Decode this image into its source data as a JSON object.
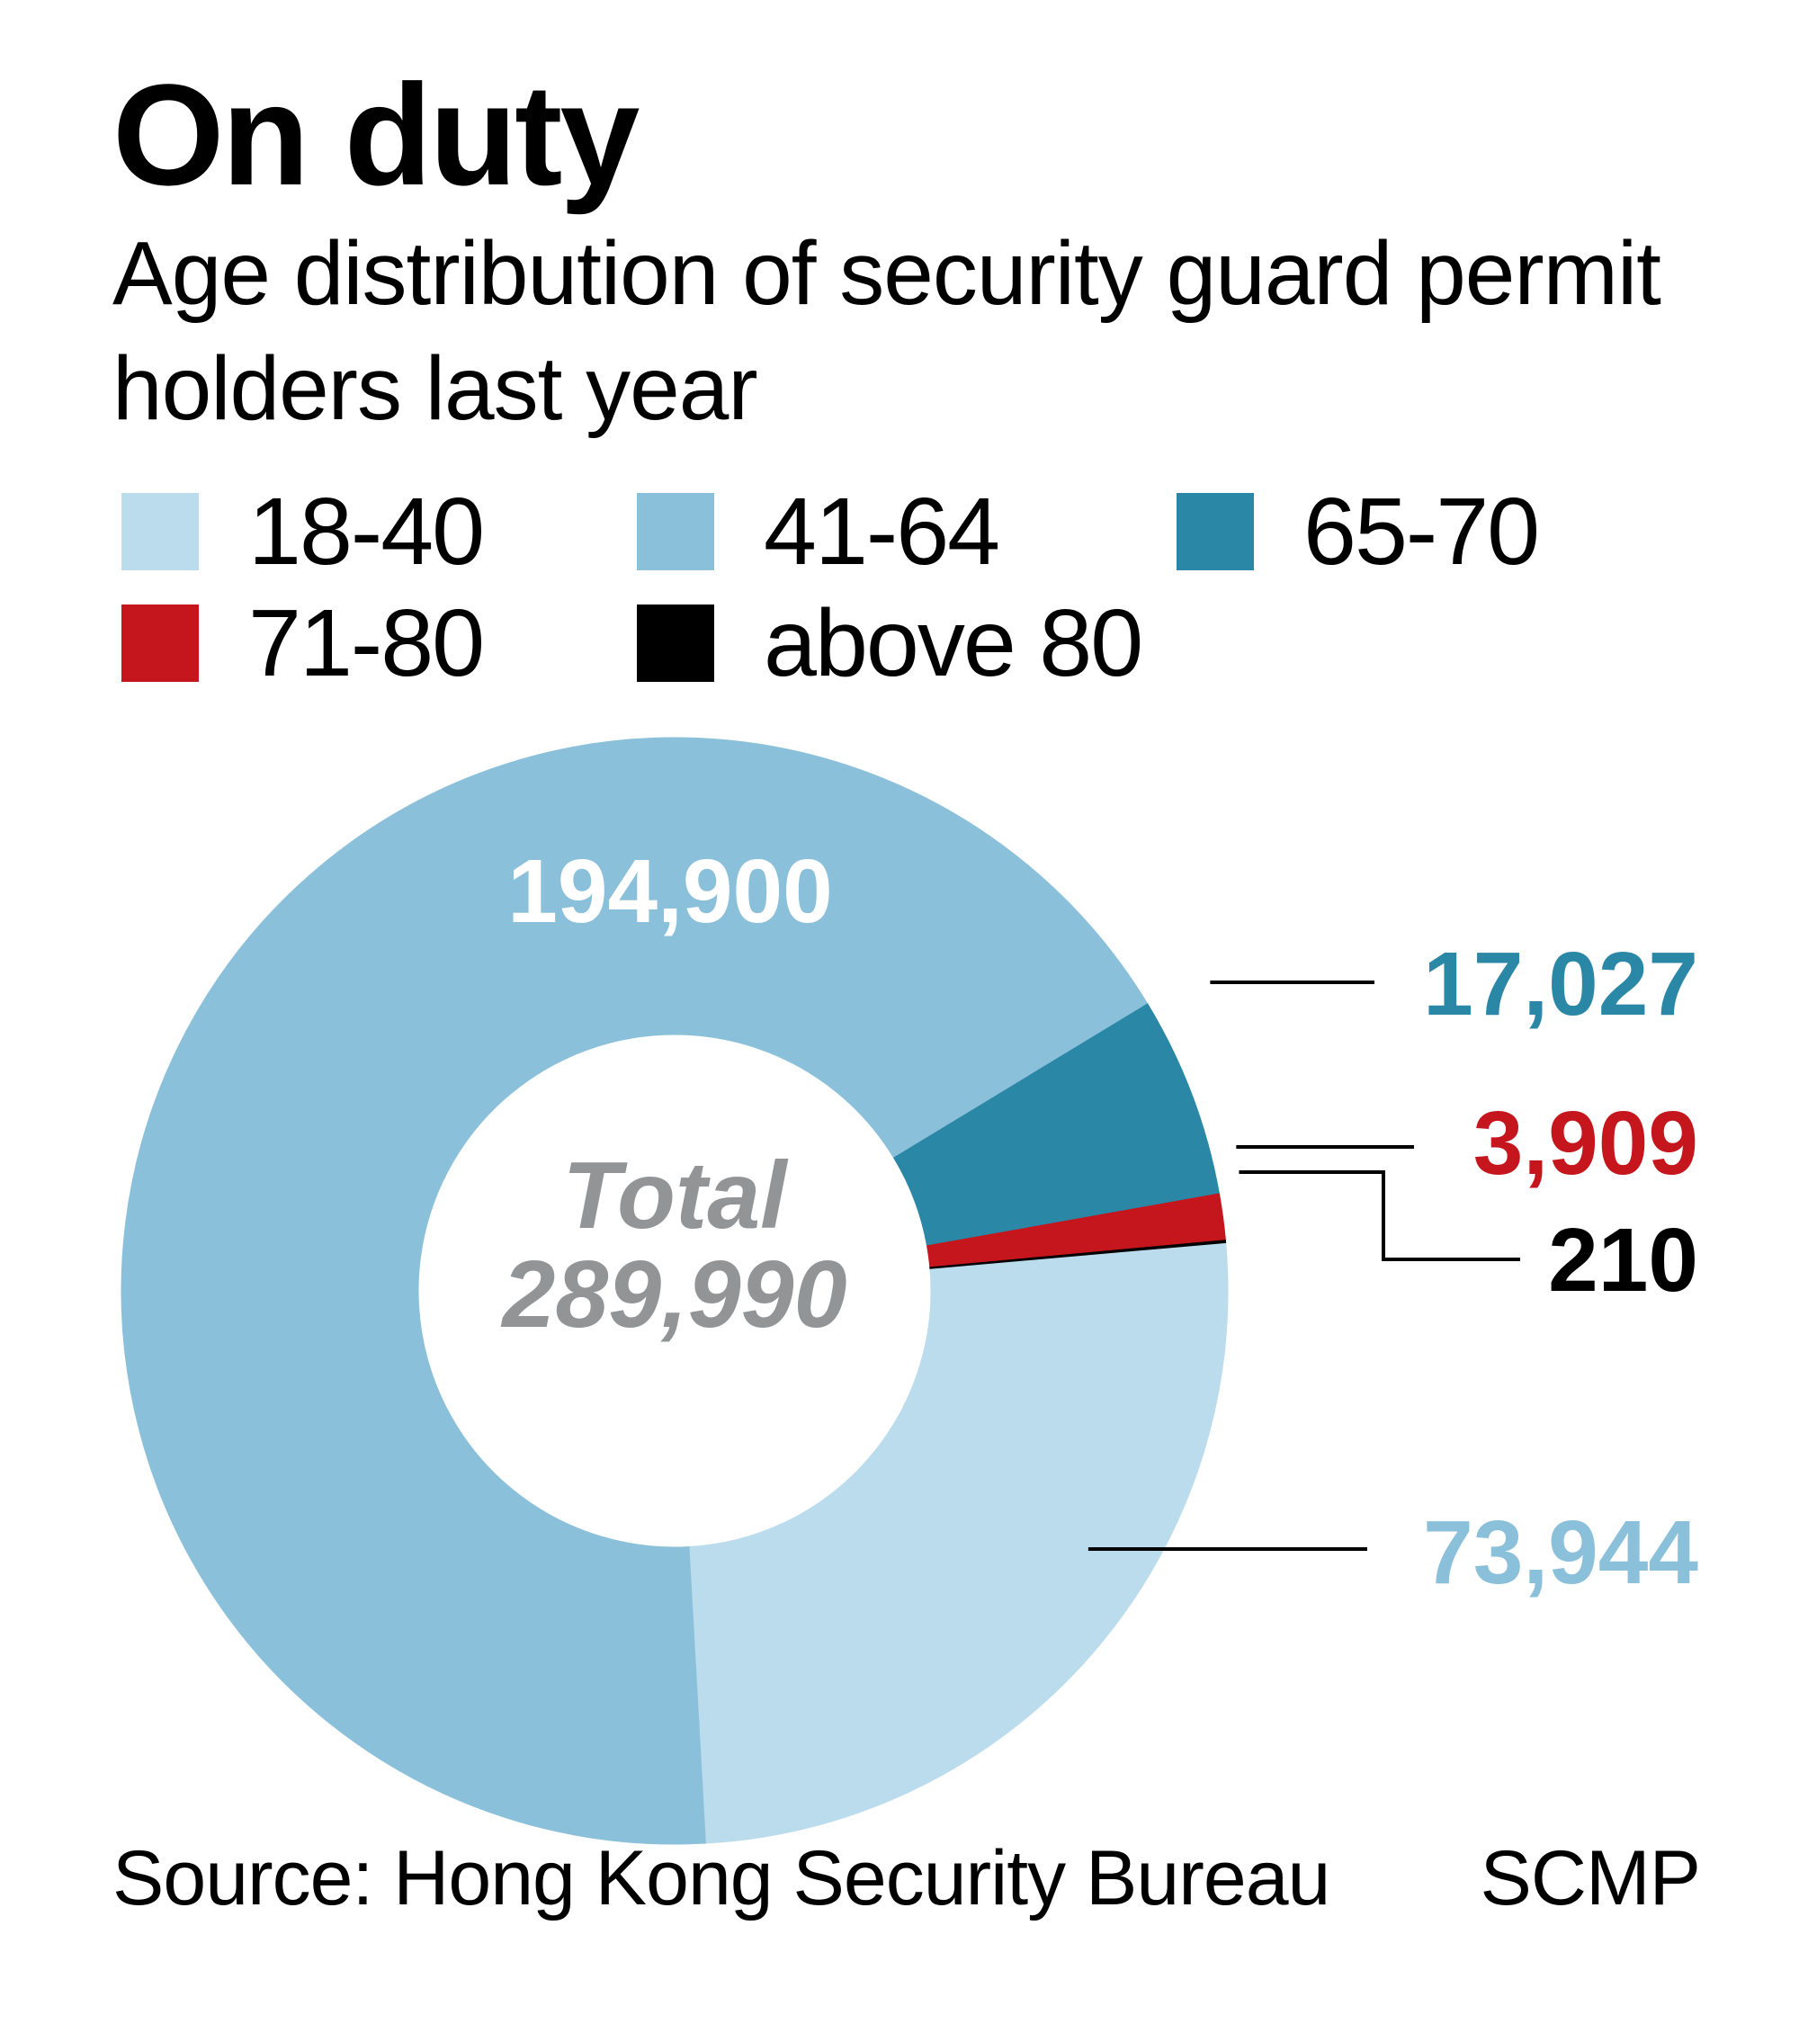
{
  "header": {
    "title": "On duty",
    "subtitle": "Age distribution of security guard permit holders last year"
  },
  "chart_data": {
    "type": "pie",
    "variant": "donut",
    "title": "On duty",
    "subtitle": "Age distribution of security guard permit holders last year",
    "center_label": {
      "line1": "Total",
      "line2": "289,990"
    },
    "total": 289990,
    "legend_placement": "top",
    "slices": [
      {
        "category": "18-40",
        "value": 73944,
        "label": "73,944",
        "color": "#bbdcec"
      },
      {
        "category": "41-64",
        "value": 194900,
        "label": "194,900",
        "color": "#8bc0da"
      },
      {
        "category": "65-70",
        "value": 17027,
        "label": "17,027",
        "color": "#2b87a6"
      },
      {
        "category": "71-80",
        "value": 3909,
        "label": "3,909",
        "color": "#c4161c"
      },
      {
        "category": "above 80",
        "value": 210,
        "label": "210",
        "color": "#000000"
      }
    ]
  },
  "colors": {
    "center_text": "#939496",
    "label_on_dark": "#ffffff",
    "leader_line": "#000000"
  },
  "footer": {
    "source": "Source: Hong Kong Security Bureau",
    "credit": "SCMP"
  }
}
